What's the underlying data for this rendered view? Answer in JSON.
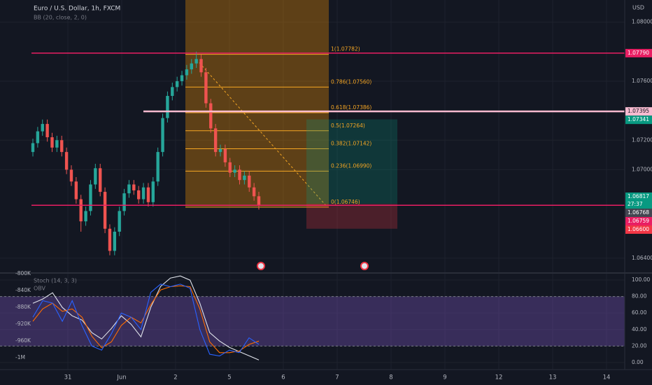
{
  "chart_data": {
    "type": "candlestick",
    "title": "Euro / U.S. Dollar, 1h, FXCM",
    "indicator": "BB (20, close, 2, 0)",
    "currency": "USD",
    "categories": [
      "31",
      "Jun",
      "2",
      "5",
      "6",
      "7",
      "8",
      "9",
      "12",
      "13",
      "14"
    ],
    "open": [
      1.0712,
      1.0718,
      1.0726,
      1.0731,
      1.0722,
      1.0715,
      1.072,
      1.0712,
      1.07,
      1.0692,
      1.068,
      1.0665,
      1.0672,
      1.069,
      1.0701,
      1.0685,
      1.066,
      1.0645,
      1.0658,
      1.0672,
      1.0684,
      1.069,
      1.0686,
      1.068,
      1.0688,
      1.0678,
      1.0692,
      1.0712,
      1.0735,
      1.075,
      1.0756,
      1.076,
      1.0764,
      1.0768,
      1.0772,
      1.0775,
      1.0766,
      1.0745,
      1.0728,
      1.0712,
      1.0714,
      1.0705,
      1.0698,
      1.07,
      1.0693,
      1.0696,
      1.0688,
      1.0682
    ],
    "high": [
      1.0721,
      1.0729,
      1.0734,
      1.0734,
      1.0725,
      1.0723,
      1.0723,
      1.0715,
      1.0703,
      1.0695,
      1.0683,
      1.0675,
      1.0693,
      1.0704,
      1.0704,
      1.0688,
      1.0663,
      1.0661,
      1.0675,
      1.0687,
      1.0693,
      1.0693,
      1.0689,
      1.0691,
      1.0691,
      1.0695,
      1.0715,
      1.0738,
      1.0753,
      1.0759,
      1.0763,
      1.0767,
      1.0771,
      1.0775,
      1.078,
      1.0778,
      1.0769,
      1.0748,
      1.0731,
      1.0717,
      1.0717,
      1.0708,
      1.0703,
      1.0703,
      1.0699,
      1.0699,
      1.0691,
      1.0685
    ],
    "low": [
      1.0709,
      1.0715,
      1.0723,
      1.0719,
      1.0712,
      1.0712,
      1.0709,
      1.0697,
      1.0689,
      1.0677,
      1.0658,
      1.0662,
      1.0669,
      1.0687,
      1.0682,
      1.0657,
      1.0642,
      1.0642,
      1.0655,
      1.0669,
      1.0681,
      1.0683,
      1.0677,
      1.0677,
      1.0675,
      1.0675,
      1.0689,
      1.0709,
      1.0732,
      1.0747,
      1.0753,
      1.0757,
      1.0761,
      1.0765,
      1.0769,
      1.0763,
      1.0742,
      1.0725,
      1.0709,
      1.0709,
      1.0702,
      1.0695,
      1.0695,
      1.069,
      1.069,
      1.0685,
      1.0679,
      1.0673
    ],
    "close": [
      1.0718,
      1.0726,
      1.0731,
      1.0722,
      1.0715,
      1.072,
      1.0712,
      1.07,
      1.0692,
      1.068,
      1.0665,
      1.0672,
      1.069,
      1.0701,
      1.0685,
      1.066,
      1.0645,
      1.0658,
      1.0672,
      1.0684,
      1.069,
      1.0686,
      1.068,
      1.0688,
      1.0678,
      1.0692,
      1.0712,
      1.0735,
      1.075,
      1.0756,
      1.076,
      1.0764,
      1.0768,
      1.0772,
      1.0775,
      1.0766,
      1.0745,
      1.0728,
      1.0712,
      1.0714,
      1.0705,
      1.0698,
      1.07,
      1.0693,
      1.0696,
      1.0688,
      1.0682,
      1.0676
    ],
    "up_color": "#26a69a",
    "down_color": "#ef5350",
    "ylim": [
      1.063,
      1.0815
    ],
    "yticks": [
      {
        "value": 1.064,
        "label": "1.06400"
      },
      {
        "value": 1.07,
        "label": "1.07000"
      },
      {
        "value": 1.072,
        "label": "1.07200"
      },
      {
        "value": 1.076,
        "label": "1.07600"
      },
      {
        "value": 1.08,
        "label": "1.08000"
      }
    ],
    "grid": true,
    "fib": [
      {
        "value": 1.07782,
        "label": "1(1.07782)"
      },
      {
        "value": 1.0756,
        "label": "0.786(1.07560)"
      },
      {
        "value": 1.07386,
        "label": "0.618(1.07386)"
      },
      {
        "value": 1.07264,
        "label": "0.5(1.07264)"
      },
      {
        "value": 1.07142,
        "label": "0.382(1.07142)"
      },
      {
        "value": 1.0699,
        "label": "0.236(1.06990)"
      },
      {
        "value": 1.06746,
        "label": "0(1.06746)"
      }
    ],
    "fib_color": "#f5a623",
    "price_labels": [
      {
        "value": 1.0779,
        "label": "1.07790",
        "color": "#e91e63",
        "line": true
      },
      {
        "value": 1.07395,
        "label": "1.07395",
        "color": "#f8bbd0",
        "line": true
      },
      {
        "value": 1.07341,
        "label": "1.07341",
        "color": "#089981"
      },
      {
        "value": 1.06817,
        "label": "1.06817",
        "color": "#089981"
      },
      {
        "value": 1.06768,
        "label": "1.06768",
        "color": "#434651"
      },
      {
        "value": 1.06759,
        "label": "1.06759",
        "color": "#e91e63",
        "line": true
      },
      {
        "value": 1.066,
        "label": "1.06600",
        "color": "#f23645"
      }
    ],
    "countdown": "27:37",
    "stoch": {
      "title": "Stoch (14, 3, 3)",
      "k": [
        55,
        75,
        72,
        50,
        75,
        45,
        20,
        15,
        35,
        60,
        55,
        40,
        85,
        95,
        92,
        95,
        90,
        40,
        10,
        8,
        15,
        12,
        30,
        22
      ],
      "d": [
        50,
        65,
        72,
        62,
        65,
        55,
        32,
        18,
        25,
        45,
        55,
        48,
        70,
        88,
        92,
        93,
        92,
        65,
        25,
        12,
        12,
        14,
        22,
        26
      ],
      "k_color": "#2962ff",
      "d_color": "#ff6d00",
      "bands": [
        20,
        80
      ],
      "ylim": [
        -6,
        108.5
      ],
      "yticks": [
        {
          "value": 0,
          "label": "0.00"
        },
        {
          "value": 20,
          "label": "20.00"
        },
        {
          "value": 40,
          "label": "40.00"
        },
        {
          "value": 60,
          "label": "60.00"
        },
        {
          "value": 80,
          "label": "80.00"
        },
        {
          "value": 100,
          "label": "100.00"
        }
      ]
    },
    "obv": {
      "title": "OBV",
      "values": [
        -870000,
        -860000,
        -845000,
        -880000,
        -900000,
        -910000,
        -940000,
        -955000,
        -930000,
        -900000,
        -920000,
        -950000,
        -880000,
        -830000,
        -810000,
        -805000,
        -815000,
        -870000,
        -940000,
        -960000,
        -975000,
        -985000,
        -995000,
        -1005000
      ],
      "color": "#e0e3eb",
      "ylim": [
        -1023000,
        -798000
      ],
      "yticks": [
        {
          "value": -800000,
          "label": "-800K"
        },
        {
          "value": -840000,
          "label": "-840K"
        },
        {
          "value": -880000,
          "label": "-880K"
        },
        {
          "value": -920000,
          "label": "-920K"
        },
        {
          "value": -960000,
          "label": "-960K"
        },
        {
          "value": -1000000,
          "label": "-1M"
        }
      ]
    }
  }
}
